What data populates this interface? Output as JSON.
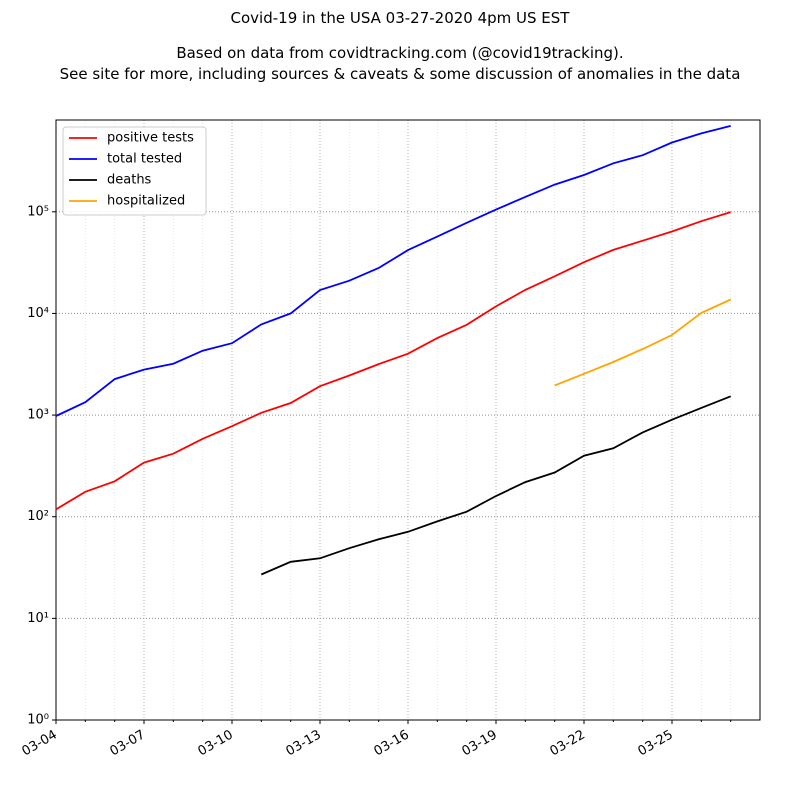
{
  "chart_data": {
    "type": "line",
    "title": "Covid-19 in the USA 03-27-2020 4pm US EST",
    "subtitle": [
      "Based on data from covidtracking.com (@covid19tracking).",
      "See site for more, including sources & caveats & some discussion of anomalies in the data"
    ],
    "x": [
      "03-04",
      "03-05",
      "03-06",
      "03-07",
      "03-08",
      "03-09",
      "03-10",
      "03-11",
      "03-12",
      "03-13",
      "03-14",
      "03-15",
      "03-16",
      "03-17",
      "03-18",
      "03-19",
      "03-20",
      "03-21",
      "03-22",
      "03-23",
      "03-24",
      "03-25",
      "03-26",
      "03-27"
    ],
    "xticks": [
      "03-04",
      "03-07",
      "03-10",
      "03-13",
      "03-16",
      "03-19",
      "03-22",
      "03-25"
    ],
    "series": [
      {
        "name": "positive tests",
        "color": "#ff0000",
        "values": [
          118,
          176,
          223,
          341,
          417,
          584,
          778,
          1053,
          1315,
          1922,
          2450,
          3173,
          4019,
          5723,
          7730,
          11719,
          17033,
          23197,
          31888,
          42152,
          51954,
          63928,
          80735,
          99413
        ]
      },
      {
        "name": "total tested",
        "color": "#0000ff",
        "values": [
          980,
          1340,
          2260,
          2800,
          3200,
          4300,
          5100,
          7800,
          10000,
          17000,
          21000,
          28000,
          42000,
          57000,
          78000,
          105000,
          140000,
          185000,
          230000,
          300000,
          360000,
          480000,
          590000,
          700000
        ]
      },
      {
        "name": "deaths",
        "color": "#000000",
        "values": [
          null,
          null,
          null,
          null,
          null,
          null,
          null,
          27,
          36,
          39,
          49,
          60,
          71,
          90,
          112,
          160,
          219,
          272,
          398,
          471,
          675,
          900,
          1177,
          1530
        ]
      },
      {
        "name": "hospitalized",
        "color": "#ffa500",
        "values": [
          null,
          null,
          null,
          null,
          null,
          null,
          null,
          null,
          null,
          null,
          null,
          null,
          null,
          null,
          null,
          null,
          null,
          1960,
          2550,
          3330,
          4470,
          6140,
          10130,
          13720
        ]
      }
    ],
    "ylim": [
      1,
      800000
    ],
    "yticks": [
      {
        "value": 1,
        "label": "10⁰"
      },
      {
        "value": 10,
        "label": "10¹"
      },
      {
        "value": 100,
        "label": "10²"
      },
      {
        "value": 1000,
        "label": "10³"
      },
      {
        "value": 10000,
        "label": "10⁴"
      },
      {
        "value": 100000,
        "label": "10⁵"
      }
    ],
    "log_y": true,
    "grid": true,
    "legend": "upper left"
  }
}
